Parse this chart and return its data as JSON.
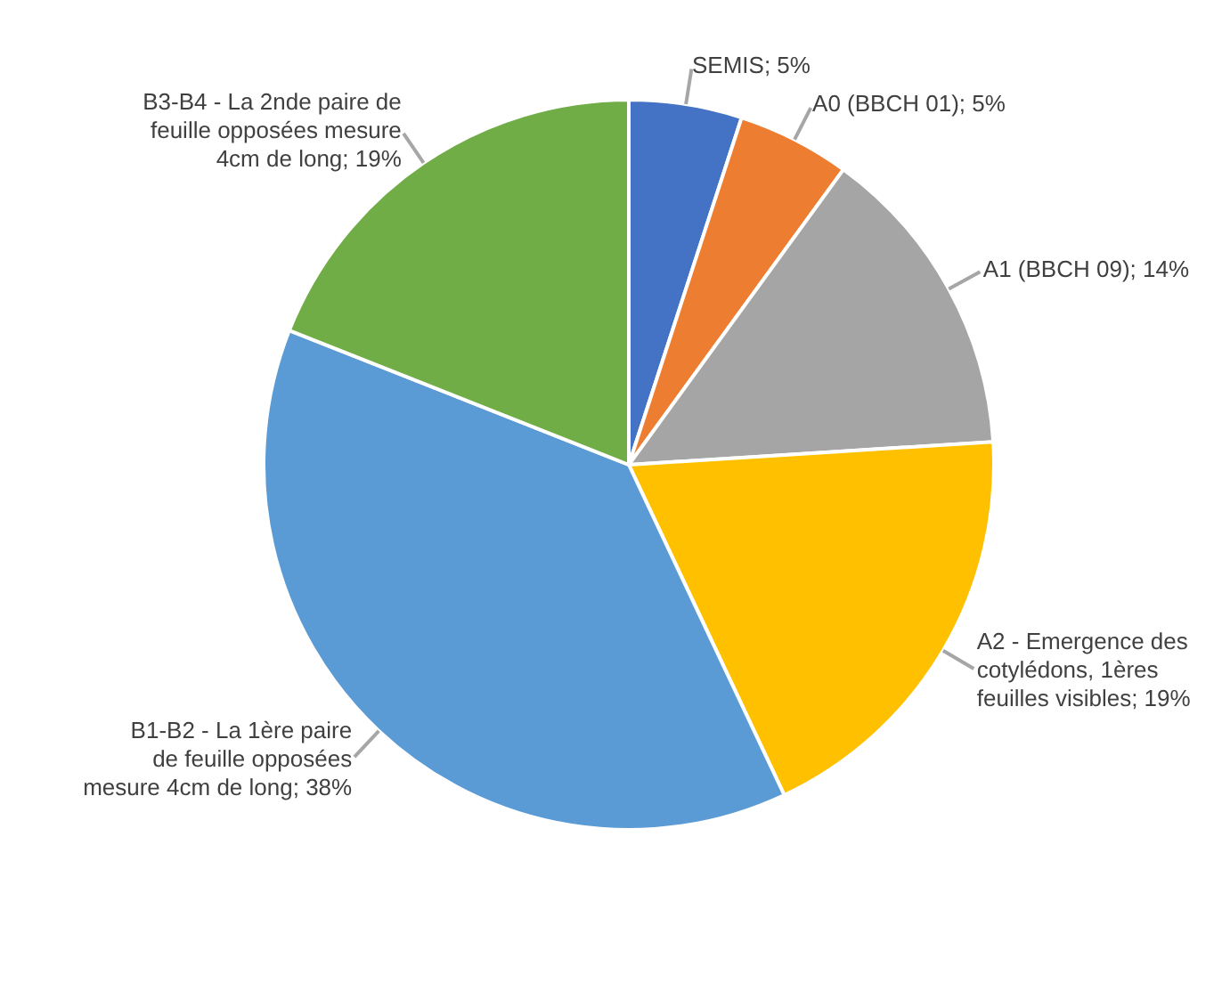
{
  "chart_data": {
    "type": "pie",
    "categories": [
      "SEMIS",
      "A0 (BBCH 01)",
      "A1 (BBCH 09)",
      "A2 - Emergence des cotylédons, 1ères feuilles visibles",
      "B1-B2 -  La 1ère paire de feuille opposées mesure 4cm de long",
      "B3-B4 - La 2nde paire de feuille opposées mesure 4cm de long"
    ],
    "values": [
      5,
      5,
      14,
      19,
      38,
      19
    ],
    "colors": [
      "#4472c4",
      "#ed7d31",
      "#a5a5a5",
      "#ffc000",
      "#5b9bd5",
      "#70ad47"
    ],
    "value_labels": [
      "5%",
      "5%",
      "14%",
      "19%",
      "38%",
      "19%"
    ],
    "legend": false
  }
}
